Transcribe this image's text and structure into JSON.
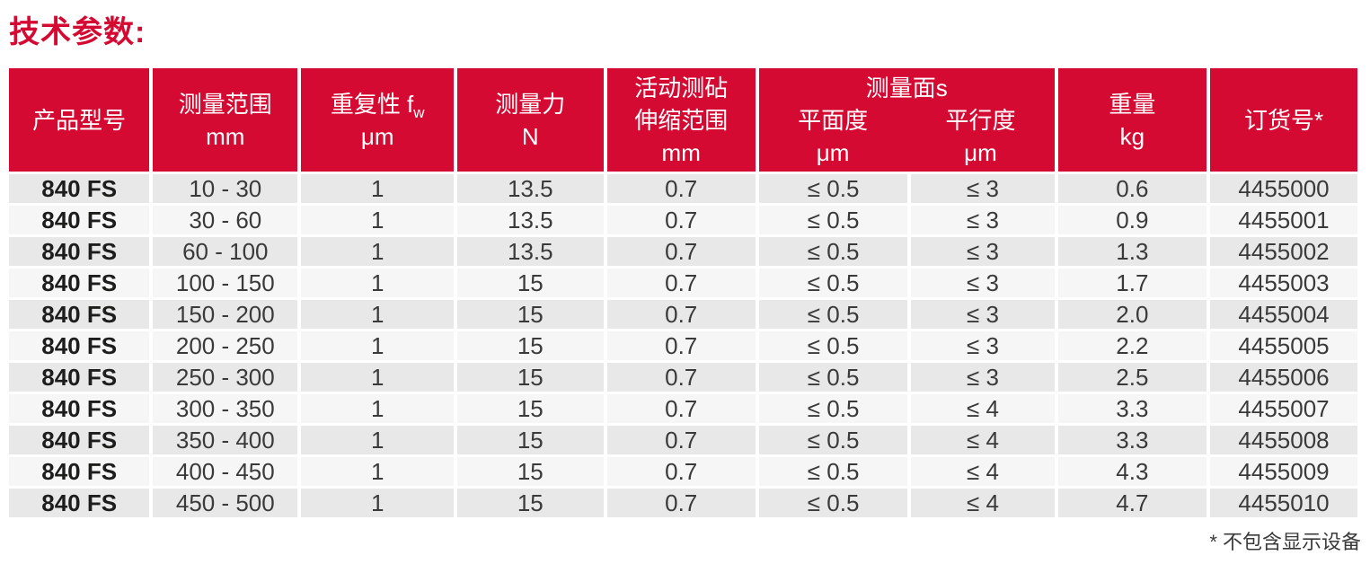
{
  "title": "技术参数:",
  "colors": {
    "brand_red": "#d50a32",
    "row_odd_bg": "#e8e8e8",
    "row_even_bg": "#f6f6f6",
    "header_text": "#ffffff",
    "body_text": "#3a3a3a"
  },
  "table": {
    "header": {
      "product_model": "产品型号",
      "measuring_range": "测量范围",
      "measuring_range_unit": "mm",
      "repeatability_prefix": "重复性 f",
      "repeatability_sub": "w",
      "repeatability_unit": "μm",
      "measuring_force": "测量力",
      "measuring_force_unit": "N",
      "anvil_line1": "活动测砧",
      "anvil_line2": "伸缩范围",
      "anvil_unit": "mm",
      "faces_group": "测量面s",
      "flatness": "平面度",
      "flatness_unit": "μm",
      "parallelism": "平行度",
      "parallelism_unit": "μm",
      "weight": "重量",
      "weight_unit": "kg",
      "order_number": "订货号*"
    },
    "rows": [
      [
        "840 FS",
        "10 - 30",
        "1",
        "13.5",
        "0.7",
        "≤ 0.5",
        "≤ 3",
        "0.6",
        "4455000"
      ],
      [
        "840 FS",
        "30 - 60",
        "1",
        "13.5",
        "0.7",
        "≤ 0.5",
        "≤ 3",
        "0.9",
        "4455001"
      ],
      [
        "840 FS",
        "60 - 100",
        "1",
        "13.5",
        "0.7",
        "≤ 0.5",
        "≤ 3",
        "1.3",
        "4455002"
      ],
      [
        "840 FS",
        "100 - 150",
        "1",
        "15",
        "0.7",
        "≤ 0.5",
        "≤ 3",
        "1.7",
        "4455003"
      ],
      [
        "840 FS",
        "150 - 200",
        "1",
        "15",
        "0.7",
        "≤ 0.5",
        "≤ 3",
        "2.0",
        "4455004"
      ],
      [
        "840 FS",
        "200 - 250",
        "1",
        "15",
        "0.7",
        "≤ 0.5",
        "≤ 3",
        "2.2",
        "4455005"
      ],
      [
        "840 FS",
        "250 - 300",
        "1",
        "15",
        "0.7",
        "≤ 0.5",
        "≤ 3",
        "2.5",
        "4455006"
      ],
      [
        "840 FS",
        "300 - 350",
        "1",
        "15",
        "0.7",
        "≤ 0.5",
        "≤ 4",
        "3.3",
        "4455007"
      ],
      [
        "840 FS",
        "350 - 400",
        "1",
        "15",
        "0.7",
        "≤ 0.5",
        "≤ 4",
        "3.3",
        "4455008"
      ],
      [
        "840 FS",
        "400 - 450",
        "1",
        "15",
        "0.7",
        "≤ 0.5",
        "≤ 4",
        "4.3",
        "4455009"
      ],
      [
        "840 FS",
        "450 - 500",
        "1",
        "15",
        "0.7",
        "≤ 0.5",
        "≤ 4",
        "4.7",
        "4455010"
      ]
    ]
  },
  "footnote": "* 不包含显示设备"
}
